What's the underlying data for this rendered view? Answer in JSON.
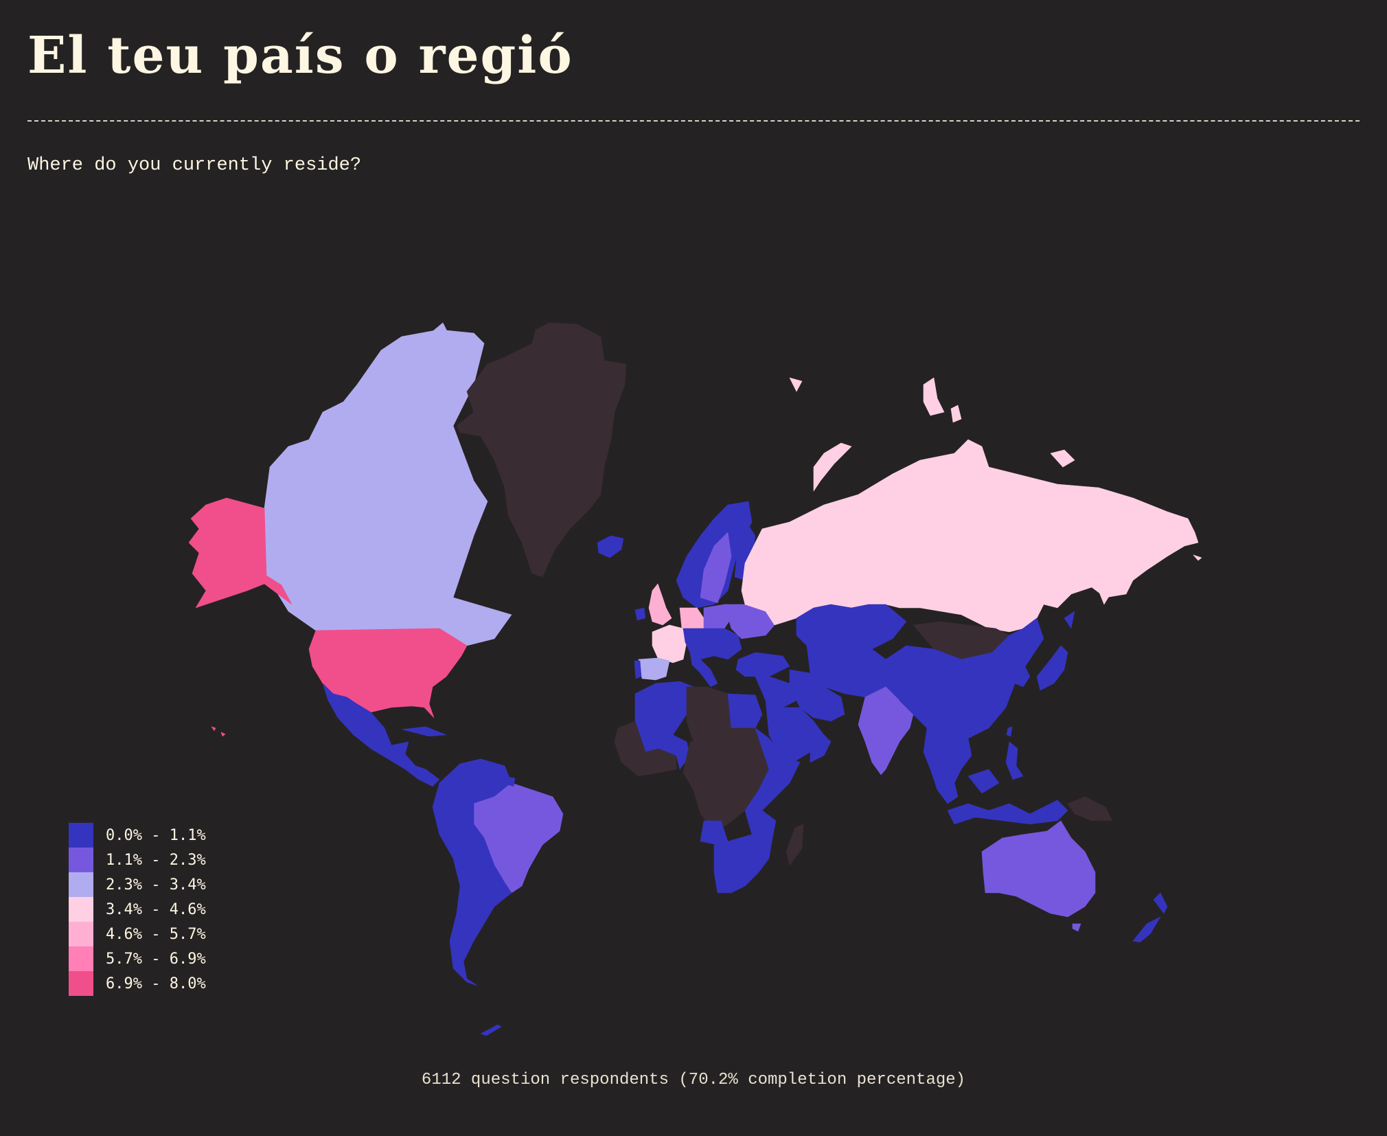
{
  "page": {
    "title": "El teu país o regió",
    "question": "Where do you currently reside?",
    "footer": "6112 question respondents (70.2% completion percentage)"
  },
  "colors": {
    "background": "#252223",
    "no_data": "#3a2c33",
    "text": "#fdf6e3"
  },
  "chart_data": {
    "type": "choropleth",
    "title": "El teu país o regió",
    "subtitle": "Where do you currently reside?",
    "unit": "percent of respondents",
    "legend": [
      {
        "label": "0.0% - 1.1%",
        "range": [
          0.0,
          1.1
        ],
        "color": "#3534bf"
      },
      {
        "label": "1.1% - 2.3%",
        "range": [
          1.1,
          2.3
        ],
        "color": "#7658df"
      },
      {
        "label": "2.3% - 3.4%",
        "range": [
          2.3,
          3.4
        ],
        "color": "#b1acef"
      },
      {
        "label": "3.4% - 4.6%",
        "range": [
          3.4,
          4.6
        ],
        "color": "#ffd0e4"
      },
      {
        "label": "4.6% - 5.7%",
        "range": [
          4.6,
          5.7
        ],
        "color": "#ffb0d2"
      },
      {
        "label": "5.7% - 6.9%",
        "range": [
          5.7,
          6.9
        ],
        "color": "#ff7fb6"
      },
      {
        "label": "6.9% - 8.0%",
        "range": [
          6.9,
          8.0
        ],
        "color": "#f04f8b"
      }
    ],
    "legend_position": "bottom-left",
    "regions": {
      "United States": 6,
      "Alaska": 6,
      "Canada": 2,
      "Greenland": null,
      "Iceland": 0,
      "Mexico": 0,
      "Central America": 0,
      "Cuba": 0,
      "Colombia": 0,
      "Venezuela": 0,
      "Peru": 0,
      "Brazil": 1,
      "Bolivia": 1,
      "Chile": 0,
      "Argentina": 0,
      "Russia": 3,
      "Kazakhstan": 0,
      "Mongolia": null,
      "China": 0,
      "Japan": 0,
      "Korea": 0,
      "India": 1,
      "Southeast Asia": 0,
      "Indonesia": 0,
      "Philippines": 0,
      "Papua New Guinea": null,
      "Australia": 1,
      "New Zealand": 0,
      "Norway": 0,
      "Sweden": 1,
      "Finland": 0,
      "United Kingdom": 4,
      "Ireland": 0,
      "France": 3,
      "Spain": 2,
      "Portugal": 0,
      "Germany": 4,
      "Poland": 1,
      "Ukraine": 1,
      "Central Europe": 0,
      "Turkey": 0,
      "Middle East": 0,
      "Saudi Arabia": 0,
      "Iran": 0,
      "Central Asia": 0,
      "North Africa": 0,
      "Libya": null,
      "Egypt": 0,
      "West Africa": null,
      "Nigeria": 0,
      "Central Africa": null,
      "East Africa": 0,
      "Angola": 0,
      "Southern Africa": 0,
      "Madagascar": null
    }
  }
}
